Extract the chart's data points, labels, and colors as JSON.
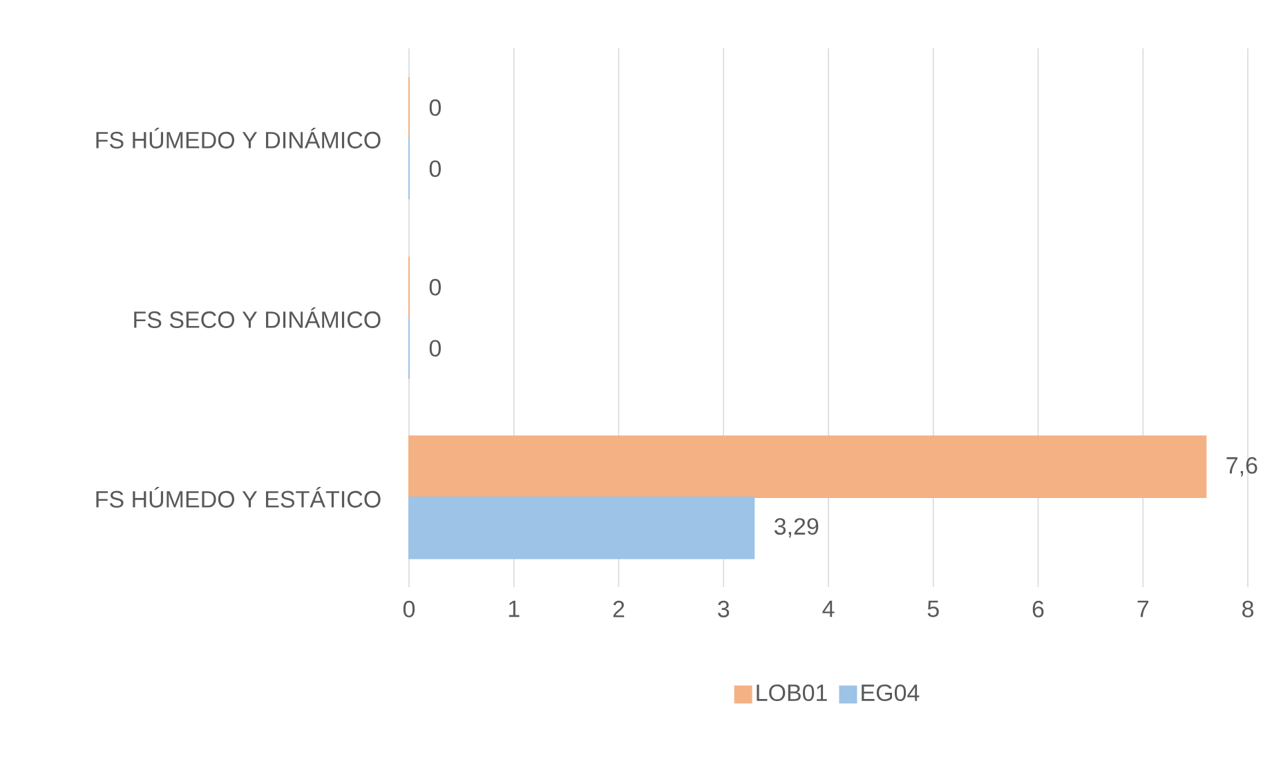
{
  "chart_data": {
    "type": "bar",
    "orientation": "horizontal",
    "categories": [
      "FS HÚMEDO Y DINÁMICO",
      "FS SECO Y DINÁMICO",
      "FS HÚMEDO Y ESTÁTICO"
    ],
    "series": [
      {
        "name": "LOB01",
        "color": "#f4b183",
        "values": [
          0,
          0,
          7.6
        ],
        "value_labels": [
          "0",
          "0",
          "7,6"
        ]
      },
      {
        "name": "EG04",
        "color": "#9dc3e6",
        "values": [
          0,
          0,
          3.29
        ],
        "value_labels": [
          "0",
          "0",
          "3,29"
        ]
      }
    ],
    "xlim": [
      0,
      8
    ],
    "xticks": [
      0,
      1,
      2,
      3,
      4,
      5,
      6,
      7,
      8
    ],
    "grid": "x",
    "legend": "bottom"
  }
}
